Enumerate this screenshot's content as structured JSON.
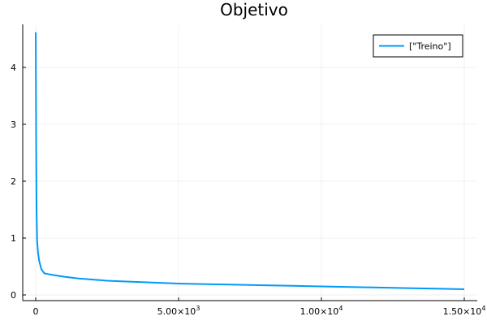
{
  "chart_data": {
    "type": "line",
    "title": "Objetivo",
    "xlabel": "",
    "ylabel": "",
    "xlim": [
      0,
      15000
    ],
    "ylim": [
      0,
      4.7
    ],
    "grid": true,
    "legend_position": "top-right",
    "x_ticks": [
      {
        "value": 0,
        "label": "0",
        "exp": ""
      },
      {
        "value": 5000,
        "label": "5.00×10",
        "exp": "3"
      },
      {
        "value": 10000,
        "label": "1.00×10",
        "exp": "4"
      },
      {
        "value": 15000,
        "label": "1.50×10",
        "exp": "4"
      }
    ],
    "y_ticks": [
      {
        "value": 0,
        "label": "0"
      },
      {
        "value": 1,
        "label": "1"
      },
      {
        "value": 2,
        "label": "2"
      },
      {
        "value": 3,
        "label": "3"
      },
      {
        "value": 4,
        "label": "4"
      }
    ],
    "series": [
      {
        "name": "[\"Treino\"]",
        "color": "#009af9",
        "x": [
          1,
          15,
          30,
          50,
          80,
          120,
          200,
          300,
          500,
          750,
          1000,
          1500,
          2000,
          2500,
          3000,
          4000,
          5000,
          6000,
          7000,
          8000,
          9000,
          10000,
          11000,
          12000,
          13000,
          14000,
          15000
        ],
        "y": [
          4.62,
          2.7,
          1.45,
          0.95,
          0.75,
          0.6,
          0.45,
          0.38,
          0.36,
          0.34,
          0.32,
          0.29,
          0.27,
          0.25,
          0.24,
          0.22,
          0.2,
          0.19,
          0.18,
          0.17,
          0.16,
          0.15,
          0.14,
          0.13,
          0.12,
          0.11,
          0.1
        ]
      }
    ]
  }
}
